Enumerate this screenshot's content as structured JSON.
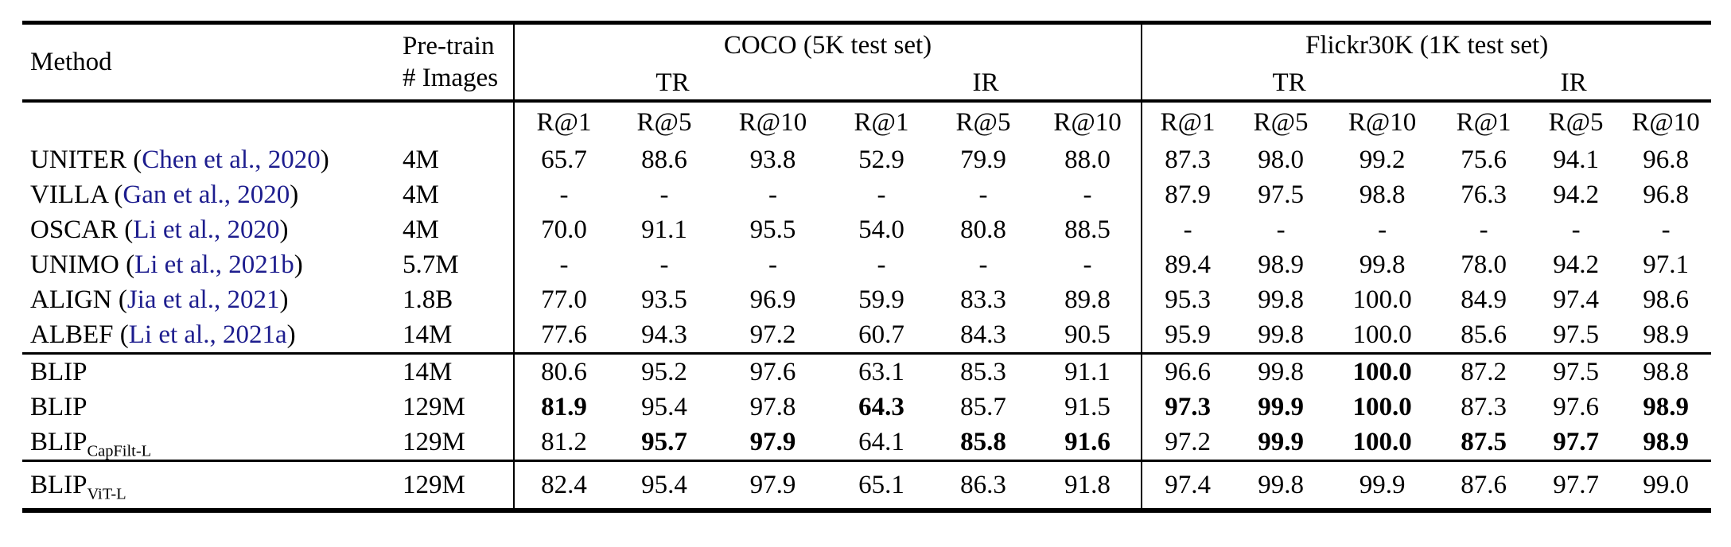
{
  "table": {
    "header": {
      "method": "Method",
      "pretrain_line1": "Pre-train",
      "pretrain_line2": "# Images",
      "groups": [
        {
          "title": "COCO (5K test set)",
          "sub": [
            "TR",
            "IR"
          ]
        },
        {
          "title": "Flickr30K (1K test set)",
          "sub": [
            "TR",
            "IR"
          ]
        }
      ],
      "metrics": [
        "R@1",
        "R@5",
        "R@10",
        "R@1",
        "R@5",
        "R@10",
        "R@1",
        "R@5",
        "R@10",
        "R@1",
        "R@5",
        "R@10"
      ]
    },
    "colors": {
      "citation": "#1d1d8e",
      "text": "#000000",
      "rule": "#000000"
    },
    "sections": [
      {
        "rows": [
          {
            "method": "UNITER",
            "subscript": "",
            "cite": "Chen et al., 2020",
            "pretrain": "4M",
            "values": [
              "65.7",
              "88.6",
              "93.8",
              "52.9",
              "79.9",
              "88.0",
              "87.3",
              "98.0",
              "99.2",
              "75.6",
              "94.1",
              "96.8"
            ],
            "bold": [
              0,
              0,
              0,
              0,
              0,
              0,
              0,
              0,
              0,
              0,
              0,
              0
            ]
          },
          {
            "method": "VILLA",
            "subscript": "",
            "cite": "Gan et al., 2020",
            "pretrain": "4M",
            "values": [
              "-",
              "-",
              "-",
              "-",
              "-",
              "-",
              "87.9",
              "97.5",
              "98.8",
              "76.3",
              "94.2",
              "96.8"
            ],
            "bold": [
              0,
              0,
              0,
              0,
              0,
              0,
              0,
              0,
              0,
              0,
              0,
              0
            ]
          },
          {
            "method": "OSCAR",
            "subscript": "",
            "cite": "Li et al., 2020",
            "pretrain": "4M",
            "values": [
              "70.0",
              "91.1",
              "95.5",
              "54.0",
              "80.8",
              "88.5",
              "-",
              "-",
              "-",
              "-",
              "-",
              "-"
            ],
            "bold": [
              0,
              0,
              0,
              0,
              0,
              0,
              0,
              0,
              0,
              0,
              0,
              0
            ]
          },
          {
            "method": "UNIMO",
            "subscript": "",
            "cite": "Li et al., 2021b",
            "pretrain": "5.7M",
            "values": [
              "-",
              "-",
              "-",
              "-",
              "-",
              "-",
              "89.4",
              "98.9",
              "99.8",
              "78.0",
              "94.2",
              "97.1"
            ],
            "bold": [
              0,
              0,
              0,
              0,
              0,
              0,
              0,
              0,
              0,
              0,
              0,
              0
            ]
          },
          {
            "method": "ALIGN",
            "subscript": "",
            "cite": "Jia et al., 2021",
            "pretrain": "1.8B",
            "values": [
              "77.0",
              "93.5",
              "96.9",
              "59.9",
              "83.3",
              "89.8",
              "95.3",
              "99.8",
              "100.0",
              "84.9",
              "97.4",
              "98.6"
            ],
            "bold": [
              0,
              0,
              0,
              0,
              0,
              0,
              0,
              0,
              0,
              0,
              0,
              0
            ]
          },
          {
            "method": "ALBEF",
            "subscript": "",
            "cite": "Li et al., 2021a",
            "pretrain": "14M",
            "values": [
              "77.6",
              "94.3",
              "97.2",
              "60.7",
              "84.3",
              "90.5",
              "95.9",
              "99.8",
              "100.0",
              "85.6",
              "97.5",
              "98.9"
            ],
            "bold": [
              0,
              0,
              0,
              0,
              0,
              0,
              0,
              0,
              0,
              0,
              0,
              0
            ]
          }
        ]
      },
      {
        "rows": [
          {
            "method": "BLIP",
            "subscript": "",
            "cite": "",
            "pretrain": "14M",
            "values": [
              "80.6",
              "95.2",
              "97.6",
              "63.1",
              "85.3",
              "91.1",
              "96.6",
              "99.8",
              "100.0",
              "87.2",
              "97.5",
              "98.8"
            ],
            "bold": [
              0,
              0,
              0,
              0,
              0,
              0,
              0,
              0,
              1,
              0,
              0,
              0
            ]
          },
          {
            "method": "BLIP",
            "subscript": "",
            "cite": "",
            "pretrain": "129M",
            "values": [
              "81.9",
              "95.4",
              "97.8",
              "64.3",
              "85.7",
              "91.5",
              "97.3",
              "99.9",
              "100.0",
              "87.3",
              "97.6",
              "98.9"
            ],
            "bold": [
              1,
              0,
              0,
              1,
              0,
              0,
              1,
              1,
              1,
              0,
              0,
              1
            ]
          },
          {
            "method": "BLIP",
            "subscript": "CapFilt-L",
            "cite": "",
            "pretrain": "129M",
            "values": [
              "81.2",
              "95.7",
              "97.9",
              "64.1",
              "85.8",
              "91.6",
              "97.2",
              "99.9",
              "100.0",
              "87.5",
              "97.7",
              "98.9"
            ],
            "bold": [
              0,
              1,
              1,
              0,
              1,
              1,
              0,
              1,
              1,
              1,
              1,
              1
            ]
          }
        ]
      },
      {
        "rows": [
          {
            "method": "BLIP",
            "subscript": "ViT-L",
            "cite": "",
            "pretrain": "129M",
            "values": [
              "82.4",
              "95.4",
              "97.9",
              "65.1",
              "86.3",
              "91.8",
              "97.4",
              "99.8",
              "99.9",
              "87.6",
              "97.7",
              "99.0"
            ],
            "bold": [
              0,
              0,
              0,
              0,
              0,
              0,
              0,
              0,
              0,
              0,
              0,
              0
            ]
          }
        ]
      }
    ]
  }
}
